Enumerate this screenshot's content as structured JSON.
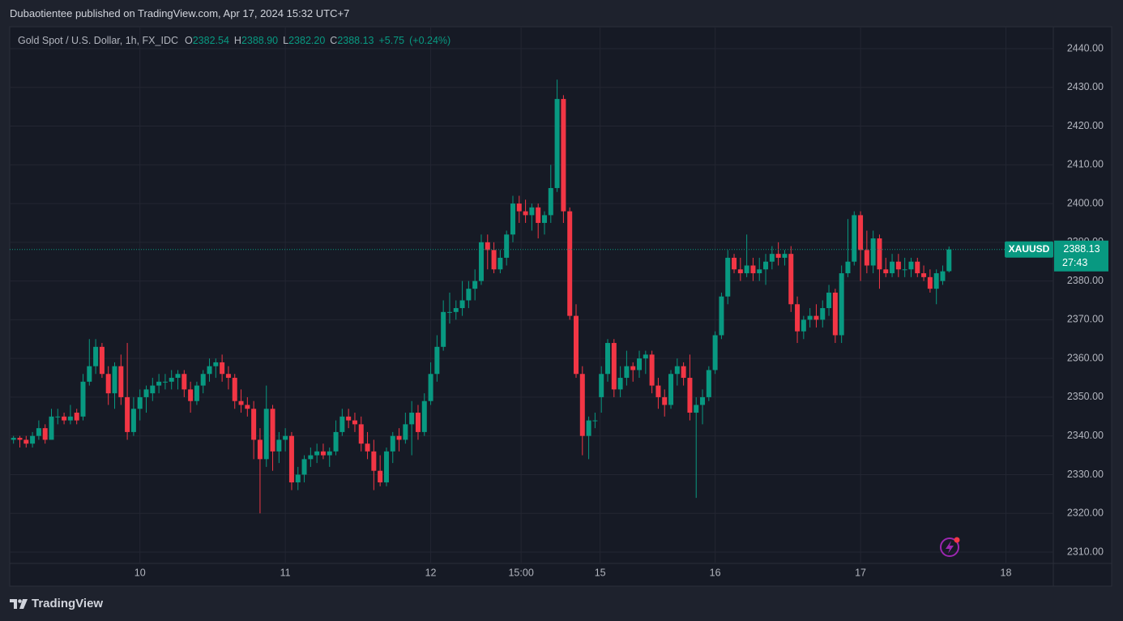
{
  "header": {
    "text": "Dubaotientee published on TradingView.com, Apr 17, 2024 15:32 UTC+7"
  },
  "footer": {
    "brand": "TradingView"
  },
  "chart_data": {
    "type": "candlestick",
    "symbol_title": "Gold Spot / U.S. Dollar, 1h, FX_IDC",
    "ohlc_legend": [
      {
        "name": "O",
        "value": 2382.54
      },
      {
        "name": "H",
        "value": {
          "value": 2388.9,
          "label": "2388.90"
        }
      },
      {
        "name": "L",
        "value": {
          "value": 2382.2,
          "label": "2382.20"
        }
      },
      {
        "name": "C",
        "value": 2388.13
      }
    ],
    "change": {
      "value": 5.75,
      "label": "+5.75"
    },
    "change_percent": {
      "value": 0.24,
      "label": "(+0.24%)"
    },
    "symbol": "XAUUSD",
    "last_price": 2388.13,
    "countdown": "27:43",
    "up_color": "#089981",
    "down_color": "#f23645",
    "open": [
      2339,
      2339.5,
      2339,
      2338,
      2340,
      2342,
      2339,
      2345,
      2345,
      2344,
      2346,
      2345,
      2354,
      2358,
      2363,
      2356,
      2351,
      2358,
      2350,
      2341,
      2347,
      2350,
      2351,
      2353,
      2354,
      2354,
      2355,
      2356,
      2352,
      2349,
      2353,
      2356,
      2358,
      2359,
      2356,
      2355,
      2349,
      2348,
      2347,
      2339,
      2334,
      2347,
      2336,
      2339,
      2340,
      2328,
      2330,
      2334,
      2335,
      2336,
      2335,
      2336,
      2341,
      2345,
      2344,
      2343,
      2338,
      2336,
      2331,
      2328,
      2336,
      2340,
      2339,
      2343,
      2346,
      2341,
      2349,
      2356,
      2363,
      2372,
      2372,
      2373,
      2375,
      2378,
      2380,
      2390,
      2388,
      2383,
      2386,
      2392,
      2400,
      2398,
      2397,
      2399,
      2395,
      2397,
      2404,
      2427,
      2398,
      2371,
      2356,
      2340,
      2344,
      2350,
      2356,
      2364,
      2352,
      2355,
      2358,
      2357,
      2360,
      2361,
      2353,
      2350,
      2348,
      2356,
      2358,
      2355,
      2346,
      2348,
      2350,
      2357,
      2366,
      2376,
      2386,
      2383,
      2382,
      2384,
      2382,
      2383,
      2385,
      2387,
      2386,
      2387,
      2374,
      2367,
      2370,
      2371,
      2370,
      2373,
      2377,
      2366,
      2382,
      2385,
      2397,
      2388,
      2384,
      2391,
      2383,
      2382,
      2385,
      2383,
      2383,
      2385,
      2382,
      2381,
      2378,
      2380,
      2382.54
    ],
    "high": [
      2340,
      2340,
      2340,
      2341,
      2344,
      2343,
      2347,
      2347,
      2346,
      2348,
      2347,
      2356,
      2365,
      2365,
      2364,
      2358,
      2359,
      2361,
      2364,
      2350,
      2352,
      2353,
      2355,
      2356,
      2356,
      2357,
      2357,
      2357,
      2354,
      2354,
      2357,
      2360,
      2360,
      2361,
      2358,
      2356,
      2352,
      2350,
      2349,
      2342,
      2353,
      2348,
      2341,
      2342,
      2341,
      2332,
      2335,
      2337,
      2338,
      2338,
      2337,
      2344,
      2347,
      2347,
      2346,
      2345,
      2341,
      2339,
      2335,
      2337,
      2341,
      2342,
      2346,
      2349,
      2348,
      2351,
      2359,
      2366,
      2375,
      2377,
      2375,
      2380,
      2380,
      2383,
      2392,
      2392,
      2390,
      2388,
      2393,
      2402,
      2402,
      2401,
      2400,
      2400,
      2398,
      2410,
      2432,
      2428,
      2399,
      2374,
      2358,
      2345,
      2346,
      2358,
      2365,
      2365,
      2358,
      2362,
      2359,
      2362,
      2362,
      2362,
      2355,
      2352,
      2357,
      2360,
      2359,
      2361,
      2350,
      2352,
      2358,
      2367,
      2377,
      2388,
      2387,
      2386,
      2392,
      2386,
      2386,
      2387,
      2389,
      2390,
      2388,
      2389,
      2376,
      2371,
      2373,
      2374,
      2375,
      2379,
      2378,
      2384,
      2396,
      2398,
      2398,
      2393,
      2393,
      2392,
      2386,
      2387,
      2387,
      2386,
      2386,
      2386,
      2384,
      2383,
      2383,
      2384,
      2388.9
    ],
    "low": [
      2338,
      2337,
      2337,
      2337,
      2339,
      2338,
      2339,
      2343,
      2343,
      2343,
      2343,
      2344,
      2353,
      2356,
      2355,
      2348,
      2347,
      2348,
      2339,
      2340,
      2344,
      2346,
      2349,
      2351,
      2352,
      2352,
      2352,
      2350,
      2346,
      2348,
      2351,
      2354,
      2355,
      2354,
      2352,
      2347,
      2346,
      2345,
      2334,
      2320,
      2332,
      2331,
      2333,
      2336,
      2326,
      2326,
      2328,
      2332,
      2333,
      2334,
      2332,
      2335,
      2340,
      2342,
      2341,
      2336,
      2334,
      2326,
      2327,
      2327,
      2333,
      2336,
      2338,
      2335,
      2339,
      2340,
      2348,
      2354,
      2362,
      2369,
      2370,
      2371,
      2373,
      2375,
      2379,
      2383,
      2382,
      2382,
      2384,
      2390,
      2395,
      2395,
      2393,
      2391,
      2392,
      2395,
      2403,
      2395,
      2370,
      2355,
      2335,
      2334,
      2342,
      2346,
      2354,
      2350,
      2350,
      2353,
      2354,
      2355,
      2356,
      2351,
      2347,
      2345,
      2347,
      2353,
      2353,
      2344,
      2324,
      2343,
      2349,
      2356,
      2365,
      2374,
      2382,
      2380,
      2381,
      2380,
      2380,
      2379,
      2383,
      2384,
      2384,
      2372,
      2364,
      2365,
      2368,
      2368,
      2368,
      2371,
      2364,
      2364,
      2381,
      2384,
      2380,
      2382,
      2382,
      2378,
      2381,
      2381,
      2381,
      2381,
      2381,
      2381,
      2380,
      2377,
      2374,
      2379,
      2382.2
    ],
    "close": [
      2339.5,
      2339,
      2338,
      2340,
      2342,
      2339,
      2345,
      2345,
      2344,
      2345,
      2344,
      2354,
      2358,
      2363,
      2356,
      2351,
      2358,
      2350,
      2341,
      2347,
      2350,
      2352,
      2353,
      2354,
      2354,
      2355,
      2356,
      2352,
      2349,
      2353,
      2356,
      2358,
      2359,
      2356,
      2355,
      2349,
      2348,
      2347,
      2339,
      2334,
      2347,
      2336,
      2339,
      2340,
      2328,
      2330,
      2334,
      2335,
      2336,
      2335,
      2336,
      2341,
      2345,
      2344,
      2343,
      2338,
      2336,
      2331,
      2328,
      2336,
      2340,
      2339,
      2343,
      2346,
      2341,
      2349,
      2356,
      2363,
      2372,
      2372,
      2373,
      2375,
      2378,
      2380,
      2390,
      2388,
      2383,
      2386,
      2392,
      2400,
      2398,
      2397,
      2399,
      2395,
      2397,
      2404,
      2427,
      2398,
      2371,
      2356,
      2340,
      2344,
      2344,
      2356,
      2364,
      2352,
      2355,
      2358,
      2357,
      2360,
      2361,
      2353,
      2350,
      2348,
      2356,
      2358,
      2355,
      2346,
      2348,
      2350,
      2357,
      2366,
      2376,
      2386,
      2383,
      2382,
      2384,
      2382,
      2383,
      2385,
      2387,
      2386,
      2387,
      2374,
      2367,
      2370,
      2371,
      2370,
      2373,
      2377,
      2366,
      2382,
      2385,
      2397,
      2388,
      2384,
      2391,
      2383,
      2382,
      2385,
      2383,
      2383,
      2385,
      2382,
      2381,
      2378,
      2382,
      2382.5,
      2388.13
    ],
    "xlim": [
      -0.6,
      164.5
    ],
    "xticks": [
      {
        "value": 20,
        "label": "10"
      },
      {
        "value": 43,
        "label": "11"
      },
      {
        "value": 66,
        "label": "12"
      },
      {
        "value": 80.3,
        "label": "15:00"
      },
      {
        "value": 92.8,
        "label": "15"
      },
      {
        "value": 111,
        "label": "16"
      },
      {
        "value": 134,
        "label": "17"
      },
      {
        "value": 157,
        "label": "18"
      }
    ],
    "ylim": [
      2307.07,
      2445.65
    ],
    "yticks": [
      {
        "value": 2310,
        "label": "2310.00"
      },
      {
        "value": 2320,
        "label": "2320.00"
      },
      {
        "value": 2330,
        "label": "2330.00"
      },
      {
        "value": 2340,
        "label": "2340.00"
      },
      {
        "value": 2350,
        "label": "2350.00"
      },
      {
        "value": 2360,
        "label": "2360.00"
      },
      {
        "value": 2370,
        "label": "2370.00"
      },
      {
        "value": 2380,
        "label": "2380.00"
      },
      {
        "value": 2390,
        "label": "2390.00"
      },
      {
        "value": 2400,
        "label": "2400.00"
      },
      {
        "value": 2410,
        "label": "2410.00"
      },
      {
        "value": 2420,
        "label": "2420.00"
      },
      {
        "value": 2430,
        "label": "2430.00"
      },
      {
        "value": 2440,
        "label": "2440.00"
      }
    ],
    "grid": true
  }
}
